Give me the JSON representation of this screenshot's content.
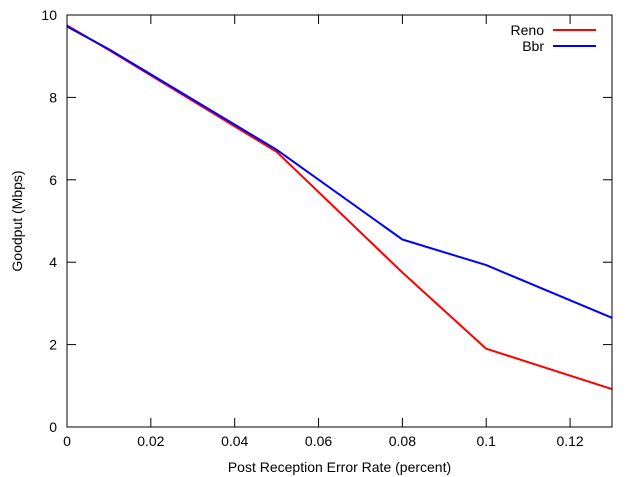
{
  "chart_data": {
    "type": "line",
    "title": "",
    "xlabel": "Post Reception Error Rate (percent)",
    "ylabel": "Goodput (Mbps)",
    "xlim": [
      0,
      0.13
    ],
    "ylim": [
      0,
      10
    ],
    "xticks": [
      0,
      0.02,
      0.04,
      0.06,
      0.08,
      0.1,
      0.12
    ],
    "xtick_labels": [
      "0",
      "0.02",
      "0.04",
      "0.06",
      "0.08",
      "0.1",
      "0.12"
    ],
    "yticks": [
      0,
      2,
      4,
      6,
      8,
      10
    ],
    "ytick_labels": [
      "0",
      "2",
      "4",
      "6",
      "8",
      "10"
    ],
    "grid": false,
    "legend": "top-right",
    "series": [
      {
        "name": "Reno",
        "color": "#ff0000",
        "x": [
          0,
          0.01,
          0.05,
          0.08,
          0.1,
          0.13
        ],
        "y": [
          9.75,
          9.15,
          6.68,
          3.75,
          1.9,
          0.92
        ]
      },
      {
        "name": "Bbr",
        "color": "#0000ff",
        "x": [
          0,
          0.01,
          0.05,
          0.08,
          0.1,
          0.13
        ],
        "y": [
          9.72,
          9.17,
          6.73,
          4.55,
          3.93,
          2.65
        ]
      }
    ]
  }
}
